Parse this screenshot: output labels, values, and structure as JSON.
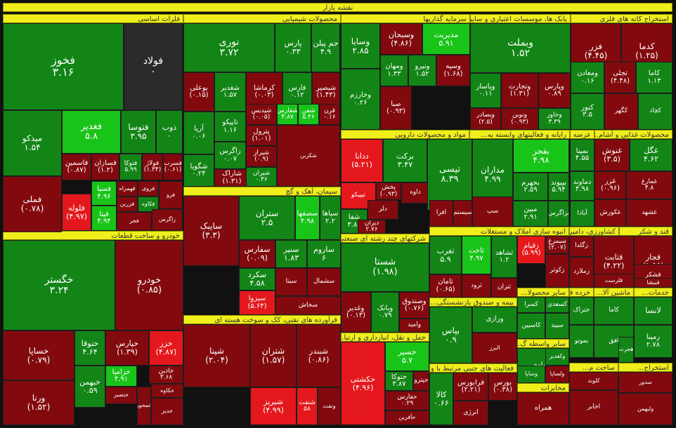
{
  "title": "نقشه بازار",
  "colors": {
    "strong_up": "#19c419",
    "up": "#128516",
    "down": "#820a0e",
    "strong_down": "#e4181c",
    "neutral": "#2b2b2b",
    "sector_header": "#f0ef1c"
  },
  "sectors": [
    {
      "label": "فلزات اساسی"
    },
    {
      "label": "محصولات شیمیایی"
    },
    {
      "label": "سرمایه گذاریها"
    },
    {
      "label": "بانک ها، موسسات اعتباری و سایر..."
    },
    {
      "label": "استخراج کانه های فلزی"
    },
    {
      "label": "مواد و محصولات دارویی"
    },
    {
      "label": "رایانه و فعالیتهای وابسته به..."
    },
    {
      "label": "عرضه برق، گاز، بخار و آ..."
    },
    {
      "label": "محصولات غذایی و آشام..."
    },
    {
      "label": "سیمان، آهک و گچ"
    },
    {
      "label": "خودرو و ساخت قطعات"
    },
    {
      "label": "شرکتهای چند رشته ای صنعتی"
    },
    {
      "label": "انبوه سازی املاک و مستغلات"
    },
    {
      "label": "کشاورزی، دامپروری و خ..."
    },
    {
      "label": "قند و شکر"
    },
    {
      "label": "فرآورده های نفتی، کک و سوخت هسته ای"
    },
    {
      "label": "بیمه و صندوق بازنشستگی..."
    },
    {
      "label": "سایر محصولا..."
    },
    {
      "label": "خرده فرو..."
    },
    {
      "label": "ماشین آلا..."
    },
    {
      "label": "خدمات..."
    },
    {
      "label": "حمل و نقل، انبارداری و ارتبا..."
    },
    {
      "label": "سایر واسطه گ..."
    },
    {
      "label": "فعالیت های جنبی مرتبط با و..."
    },
    {
      "label": "ساخت م..."
    },
    {
      "label": "استخراج..."
    },
    {
      "label": "مخابرات"
    }
  ],
  "tiles": [
    {
      "name": "فخوز",
      "value": "۳.۱۶"
    },
    {
      "name": "فولاد",
      "value": "۰"
    },
    {
      "name": "فغدیر",
      "value": "۵.۸"
    },
    {
      "name": "فتوسا",
      "value": "۳.۹۵"
    },
    {
      "name": "ذوب",
      "value": "۰"
    },
    {
      "name": "میدکو",
      "value": "۱.۵۴"
    },
    {
      "name": "فملی",
      "value": "(۰.۷۸)"
    },
    {
      "name": "فلوله",
      "value": "(۴.۹۷)"
    },
    {
      "name": "فسپا",
      "value": "۴.۹۶"
    },
    {
      "name": "فیتا",
      "value": "۴.۹۴"
    },
    {
      "name": "فاسمین",
      "value": "(۰.۸۷)"
    },
    {
      "name": "فسازان",
      "value": "(۱.۲)"
    },
    {
      "name": "فتوکا",
      "value": "۵.۹۹"
    },
    {
      "name": "فولاژ",
      "value": "(۱.۳۴)"
    },
    {
      "name": "فسرب",
      "value": "(۰.۶۱)"
    },
    {
      "name": "فهمراه",
      "value": ""
    },
    {
      "name": "فروی",
      "value": ""
    },
    {
      "name": "فزرین",
      "value": ""
    },
    {
      "name": "فکاوه",
      "value": ""
    },
    {
      "name": "فرو",
      "value": ""
    },
    {
      "name": "فجر",
      "value": ""
    },
    {
      "name": "زاگرس",
      "value": ""
    },
    {
      "name": "نوری",
      "value": "۳.۷۲"
    },
    {
      "name": "پارس",
      "value": "۰.۳۳"
    },
    {
      "name": "جم پیلن",
      "value": "۴.۹"
    },
    {
      "name": "بوعلی",
      "value": "(۰.۱۵)"
    },
    {
      "name": "شغدیر",
      "value": "۱.۵۷"
    },
    {
      "name": "کرماشا",
      "value": "(۰.۰۳)"
    },
    {
      "name": "فارس",
      "value": "۰.۱۲"
    },
    {
      "name": "شبصیر",
      "value": "(۱.۴۳)"
    },
    {
      "name": "آریا",
      "value": "۰.۰۶"
    },
    {
      "name": "تاپیکو",
      "value": "۱.۱۶"
    },
    {
      "name": "شپدیس",
      "value": "(۰.۰۵)"
    },
    {
      "name": "شفارس",
      "value": "۴.۸۷"
    },
    {
      "name": "شفن",
      "value": "۵.۴۶"
    },
    {
      "name": "قرن",
      "value": "۰.۱۶"
    },
    {
      "name": "شگویا",
      "value": "۰.۲۴"
    },
    {
      "name": "زاگرس",
      "value": "۰.۰۷"
    },
    {
      "name": "پترول",
      "value": "(۱.۰۱)"
    },
    {
      "name": "شاراک",
      "value": "(۱.۳۱)"
    },
    {
      "name": "شیراز",
      "value": "(۰.۹)"
    },
    {
      "name": "شیران",
      "value": "۰.۳۶"
    },
    {
      "name": "شکربن",
      "value": ""
    },
    {
      "name": "وسایا",
      "value": "۲.۸۵"
    },
    {
      "name": "وسبحان",
      "value": "(۴.۸۶)"
    },
    {
      "name": "مدیریت",
      "value": "۵.۹۱"
    },
    {
      "name": "ومهان",
      "value": "۱.۳۳"
    },
    {
      "name": "ونیرو",
      "value": "۱.۵۲"
    },
    {
      "name": "وسپه",
      "value": "(۱.۶۸)"
    },
    {
      "name": "وخارزم",
      "value": "۰.۲۶"
    },
    {
      "name": "صبا",
      "value": "(۰.۹۳)"
    },
    {
      "name": "وبملت",
      "value": "۱.۵۲"
    },
    {
      "name": "وپاسار",
      "value": "۰.۱۱"
    },
    {
      "name": "وتجارت",
      "value": "(۱.۳۱)"
    },
    {
      "name": "وپارس",
      "value": "۰.۸۹"
    },
    {
      "name": "وبصادر",
      "value": "(۲.۵)"
    },
    {
      "name": "ونوین",
      "value": "(۰.۹۳)"
    },
    {
      "name": "وخاور",
      "value": "۳.۳۹"
    },
    {
      "name": "فزر",
      "value": "(۴.۴۵)"
    },
    {
      "name": "کدما",
      "value": "(۱.۲۵)"
    },
    {
      "name": "ومعادن",
      "value": "۰.۱۶"
    },
    {
      "name": "تجلی",
      "value": "(۴.۴۸)"
    },
    {
      "name": "کاما",
      "value": "۱.۱۳"
    },
    {
      "name": "کنور",
      "value": "۳.۵"
    },
    {
      "name": "کگهر",
      "value": ""
    },
    {
      "name": "کچاد",
      "value": ""
    },
    {
      "name": "ددانا",
      "value": "(۵.۲۱)"
    },
    {
      "name": "برکت",
      "value": "۳.۴۷"
    },
    {
      "name": "تیپیکو",
      "value": ""
    },
    {
      "name": "پخش",
      "value": "(۰.۹۳)"
    },
    {
      "name": "داوه",
      "value": ""
    },
    {
      "name": "شفا",
      "value": "۳.۸۵"
    },
    {
      "name": "دلر",
      "value": ""
    },
    {
      "name": "دیران",
      "value": "۲.۷۶"
    },
    {
      "name": "تیسی",
      "value": "۸.۳۹"
    },
    {
      "name": "مداران",
      "value": "۴.۹۹"
    },
    {
      "name": "سپ",
      "value": ""
    },
    {
      "name": "سیستم",
      "value": ""
    },
    {
      "name": "افرا",
      "value": ""
    },
    {
      "name": "بفجر",
      "value": "۴.۹۸"
    },
    {
      "name": "بمپنا",
      "value": "۴.۵۵"
    },
    {
      "name": "بجهرم",
      "value": "۲.۵۹"
    },
    {
      "name": "بپیوند",
      "value": "۵.۹۴"
    },
    {
      "name": "دماوند",
      "value": "۴.۹۸"
    },
    {
      "name": "مبین",
      "value": "۲.۹۱"
    },
    {
      "name": "بزاگرس",
      "value": ""
    },
    {
      "name": "آبادا",
      "value": ""
    },
    {
      "name": "غنوش",
      "value": "(۳.۵)"
    },
    {
      "name": "غگل",
      "value": "۴.۶۲"
    },
    {
      "name": "غزر",
      "value": "(۰.۹۶)"
    },
    {
      "name": "غمارغ",
      "value": "۴.۸"
    },
    {
      "name": "غکورش",
      "value": ""
    },
    {
      "name": "غشهد",
      "value": ""
    },
    {
      "name": "ستران",
      "value": "۲.۵"
    },
    {
      "name": "سایبک",
      "value": "(۳.۳)"
    },
    {
      "name": "سصفها",
      "value": "۴.۹۸"
    },
    {
      "name": "سپاها",
      "value": "۲.۲"
    },
    {
      "name": "سفارس",
      "value": "(۰.۰۹)"
    },
    {
      "name": "سنیر",
      "value": "۱.۸۳"
    },
    {
      "name": "ساروم",
      "value": "۶"
    },
    {
      "name": "سکرد",
      "value": "۴.۵۸"
    },
    {
      "name": "سیتا",
      "value": ""
    },
    {
      "name": "سشمال",
      "value": ""
    },
    {
      "name": "سبزوا",
      "value": "(۵.۶۴)"
    },
    {
      "name": "سخاش",
      "value": ""
    },
    {
      "name": "خگستر",
      "value": "۳.۲۴"
    },
    {
      "name": "خودرو",
      "value": "(۰.۸۵)"
    },
    {
      "name": "خساپا",
      "value": "(۰.۷۹)"
    },
    {
      "name": "ختوقا",
      "value": "۴.۶۴"
    },
    {
      "name": "خپارس",
      "value": "(۱.۳۹)"
    },
    {
      "name": "خزر",
      "value": "(۴.۸۷)"
    },
    {
      "name": "خزامیا",
      "value": "۴.۹۱"
    },
    {
      "name": "خبهمن",
      "value": "۰.۵۹"
    },
    {
      "name": "ورنا",
      "value": "(۱.۵۲)"
    },
    {
      "name": "خاذین",
      "value": "۳.۶۸"
    },
    {
      "name": "خمحور",
      "value": ""
    },
    {
      "name": "خکاوه",
      "value": ""
    },
    {
      "name": "خنصیر",
      "value": ""
    },
    {
      "name": "خدیز",
      "value": ""
    },
    {
      "name": "شستا",
      "value": "(۱.۹۸)"
    },
    {
      "name": "وغدیر",
      "value": "(۰.۱۳)"
    },
    {
      "name": "وبانک",
      "value": "۰.۷۹"
    },
    {
      "name": "وصندوق",
      "value": "(۰.۷۶)"
    },
    {
      "name": "وامید",
      "value": ""
    },
    {
      "name": "ثغرب",
      "value": "۵.۹"
    },
    {
      "name": "ثاخت",
      "value": "۴.۹۷"
    },
    {
      "name": "ثشاهد",
      "value": "۱.۲"
    },
    {
      "name": "ثامان",
      "value": "(۰.۶۵)"
    },
    {
      "name": "ثرود",
      "value": ""
    },
    {
      "name": "ثتران",
      "value": ""
    },
    {
      "name": "ثمسکن",
      "value": "(۱.۱)"
    },
    {
      "name": "زقیام",
      "value": "(۵.۹۹)"
    },
    {
      "name": "زکوثر",
      "value": ""
    },
    {
      "name": "سیمرغ",
      "value": "(۲.۰۷)"
    },
    {
      "name": "زگلدا",
      "value": ""
    },
    {
      "name": "زملارد",
      "value": ""
    },
    {
      "name": "قثابت",
      "value": "(۴.۲۲)"
    },
    {
      "name": "قجار",
      "value": "(۱.۹۵)"
    },
    {
      "name": "قشکر",
      "value": ""
    },
    {
      "name": "قلرست",
      "value": ""
    },
    {
      "name": "قنیشا",
      "value": ""
    },
    {
      "name": "شپنا",
      "value": "(۲.۰۴)"
    },
    {
      "name": "شتران",
      "value": "(۱.۵۷)"
    },
    {
      "name": "شبندر",
      "value": "(۰.۸۶)"
    },
    {
      "name": "شبریز",
      "value": "(۴.۹۹)"
    },
    {
      "name": "شنفت",
      "value": "۵۸"
    },
    {
      "name": "ونفت",
      "value": ""
    },
    {
      "name": "البرز",
      "value": ""
    },
    {
      "name": "حکشتی",
      "value": "(۴.۹۶)"
    },
    {
      "name": "حسیر",
      "value": "۵.۷"
    },
    {
      "name": "حتوکا",
      "value": "۳.۸۷"
    },
    {
      "name": "حپترو",
      "value": ""
    },
    {
      "name": "حفارس",
      "value": "۰.۲۹"
    },
    {
      "name": "حآفرین",
      "value": ""
    },
    {
      "name": "وتوکا",
      "value": ""
    },
    {
      "name": "بپاس",
      "value": "۰.۹"
    },
    {
      "name": "ورازی",
      "value": ""
    },
    {
      "name": "کالا",
      "value": "۰.۶۶"
    },
    {
      "name": "فرابورس",
      "value": "(۲.۲۱)"
    },
    {
      "name": "بورس",
      "value": "(۰.۳۸)"
    },
    {
      "name": "انرژی",
      "value": ""
    },
    {
      "name": "همراه",
      "value": ""
    },
    {
      "name": "اخابر",
      "value": ""
    },
    {
      "name": "کسرا",
      "value": ""
    },
    {
      "name": "کسعدی",
      "value": ""
    },
    {
      "name": "کاسپین",
      "value": ""
    },
    {
      "name": "کساوه",
      "value": ""
    },
    {
      "name": "سپید",
      "value": ""
    },
    {
      "name": "وکغدیر",
      "value": ""
    },
    {
      "name": "لابسا",
      "value": ""
    },
    {
      "name": "رمپنا",
      "value": "۲.۷۸"
    },
    {
      "name": "کاما",
      "value": ""
    },
    {
      "name": "ختراک",
      "value": ""
    },
    {
      "name": "بموتو",
      "value": ""
    },
    {
      "name": "افق",
      "value": ""
    },
    {
      "name": "هجرت",
      "value": ""
    },
    {
      "name": "کلوند",
      "value": ""
    },
    {
      "name": "سدور",
      "value": ""
    },
    {
      "name": "ولبهمن",
      "value": ""
    },
    {
      "name": "وساپا",
      "value": ""
    },
    {
      "name": "ولساپا",
      "value": ""
    },
    {
      "name": "کزر",
      "value": ""
    },
    {
      "name": "شاوان",
      "value": ""
    }
  ]
}
